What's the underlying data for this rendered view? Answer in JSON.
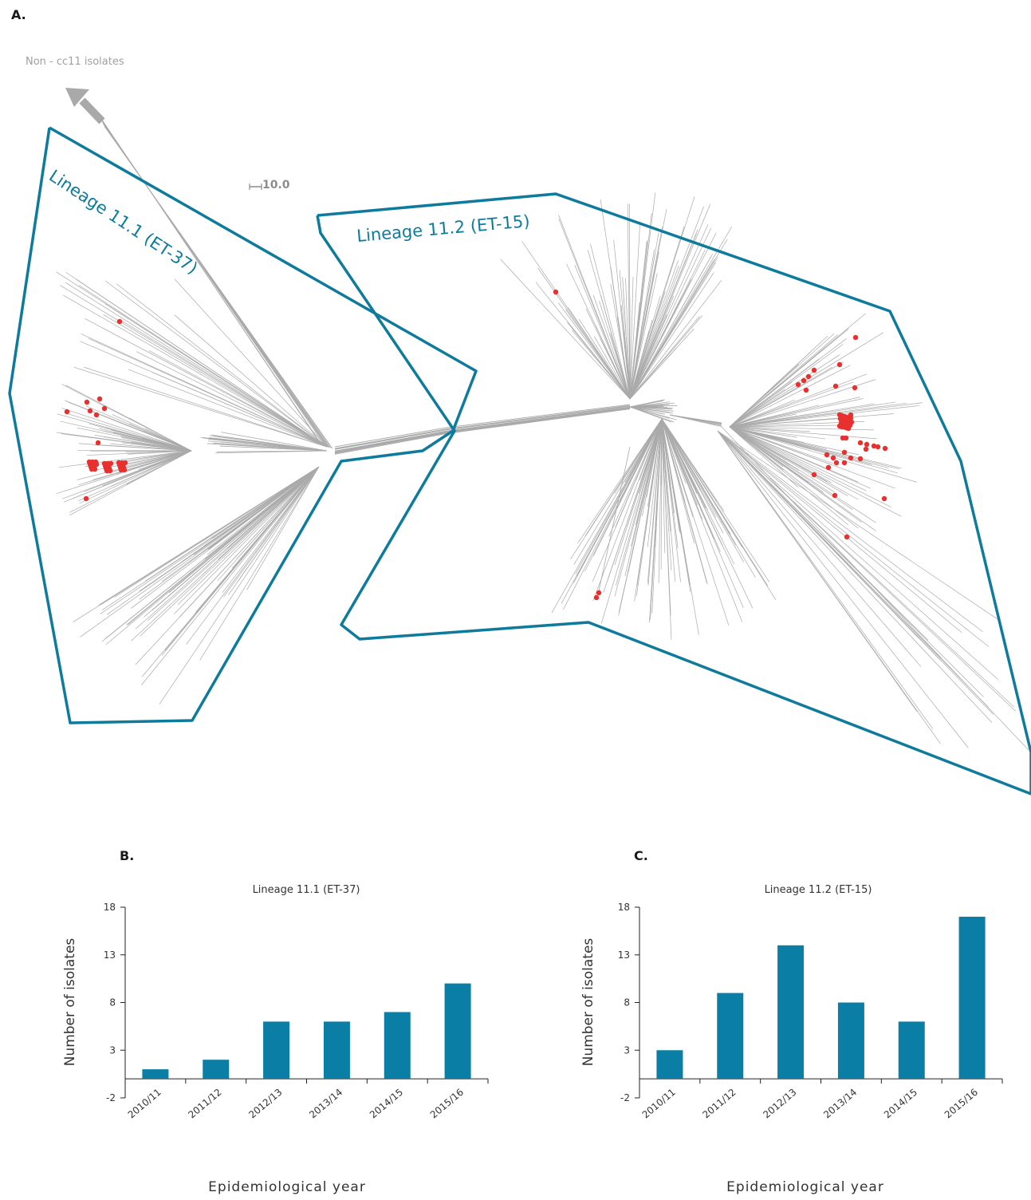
{
  "panels": {
    "a_label": "A.",
    "b_label": "B.",
    "c_label": "C."
  },
  "tree": {
    "outgroup_label": "Non - cc11 isolates",
    "scale_label": "10.0",
    "lineage_11_1_label": "Lineage 11.1 (ET-37)",
    "lineage_11_2_label": "Lineage 11.2 (ET-15)",
    "colors": {
      "branch": "#aaaaaa",
      "isolate": "#e8302f",
      "outline": "#0e7b9c"
    }
  },
  "chart_data": [
    {
      "type": "bar",
      "title": "Lineage 11.1 (ET-37)",
      "categories": [
        "2010/11",
        "2011/12",
        "2012/13",
        "2013/14",
        "2014/15",
        "2015/16"
      ],
      "values": [
        1,
        2,
        6,
        6,
        7,
        10
      ],
      "xlabel": "Epidemiological  year",
      "ylabel": "Number of isolates",
      "yticks": [
        -2,
        3,
        8,
        13,
        18
      ],
      "ylim": [
        -2,
        18
      ],
      "color": "#0a7ea4"
    },
    {
      "type": "bar",
      "title": "Lineage 11.2 (ET-15)",
      "categories": [
        "2010/11",
        "2011/12",
        "2012/13",
        "2013/14",
        "2014/15",
        "2015/16"
      ],
      "values": [
        3,
        9,
        14,
        8,
        6,
        17
      ],
      "xlabel": "Epidemiological  year",
      "ylabel": "Number of isolates",
      "yticks": [
        -2,
        3,
        8,
        13,
        18
      ],
      "ylim": [
        -2,
        18
      ],
      "color": "#0a7ea4"
    }
  ]
}
